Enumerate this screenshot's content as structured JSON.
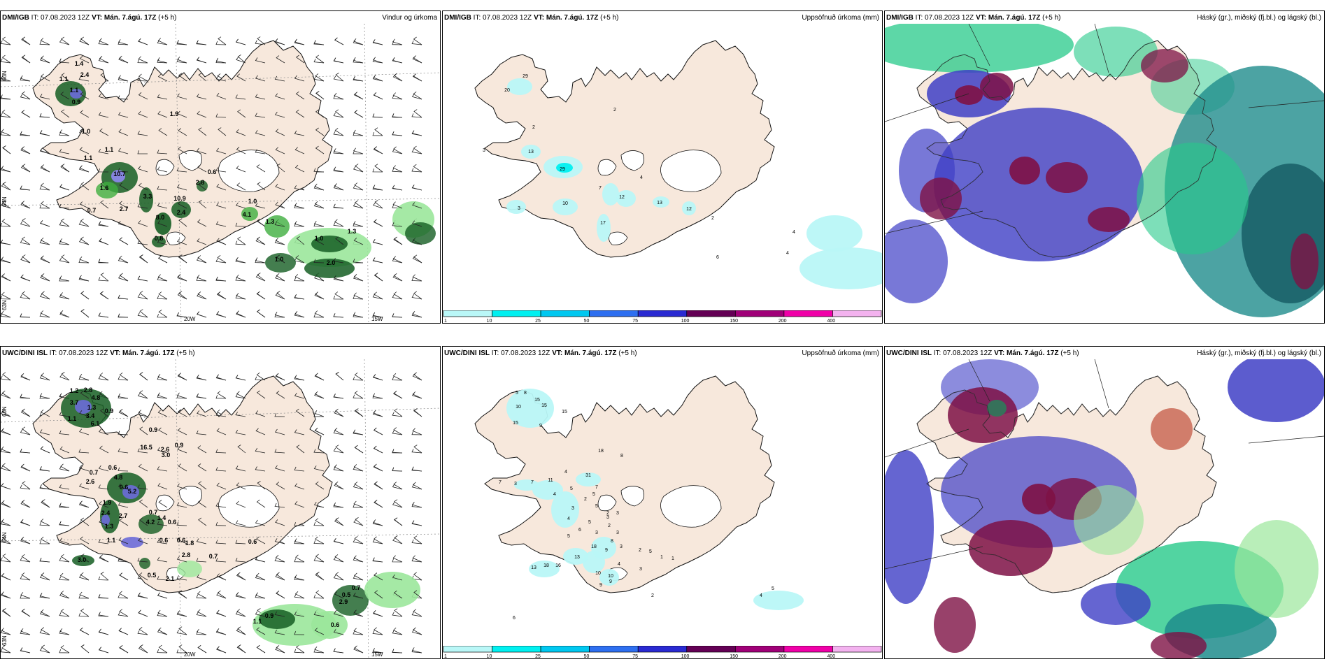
{
  "panels": [
    {
      "source": "DMI/IGB",
      "it": "IT: 07.08.2023 12Z",
      "vt_label": "VT:",
      "vt_value": "Mán. 7.ágú. 17Z",
      "lead": "(+5 h)",
      "product": "Vindur og úrkoma",
      "labels": [
        [
          "1.4",
          112,
          60
        ],
        [
          "1.1",
          90,
          82
        ],
        [
          "2.4",
          120,
          76
        ],
        [
          "1.1",
          105,
          98
        ],
        [
          "0.9",
          108,
          115
        ],
        [
          "1.9",
          248,
          132
        ],
        [
          "1.0",
          122,
          157
        ],
        [
          "1.1",
          155,
          183
        ],
        [
          "1.1",
          125,
          195
        ],
        [
          "10.7",
          170,
          218
        ],
        [
          "1.6",
          148,
          238
        ],
        [
          "3.3",
          210,
          250
        ],
        [
          "2.7",
          176,
          268
        ],
        [
          "0.7",
          130,
          270
        ],
        [
          "10.9",
          256,
          253
        ],
        [
          "2.4",
          258,
          273
        ],
        [
          "8.0",
          228,
          280
        ],
        [
          "0.8",
          226,
          310
        ],
        [
          "2.8",
          285,
          230
        ],
        [
          "0.6",
          302,
          215
        ],
        [
          "1.0",
          360,
          257
        ],
        [
          "4.1",
          352,
          276
        ],
        [
          "1.3",
          385,
          286
        ],
        [
          "1.0",
          455,
          310
        ],
        [
          "1.3",
          502,
          300
        ],
        [
          "1.0",
          398,
          340
        ],
        [
          "2.0",
          472,
          345
        ]
      ]
    },
    {
      "source": "DMI/IGB",
      "it": "IT: 07.08.2023 12Z",
      "vt_label": "VT:",
      "vt_value": "Mán. 7.ágú. 17Z",
      "lead": "(+5 h)",
      "product": "Uppsöfnuð úrkoma (mm)",
      "labels": [
        [
          "29",
          118,
          77
        ],
        [
          "20",
          92,
          97
        ],
        [
          "2",
          246,
          125
        ],
        [
          "2",
          130,
          150
        ],
        [
          "3",
          59,
          183
        ],
        [
          "13",
          126,
          185
        ],
        [
          "29",
          171,
          210
        ],
        [
          "4",
          284,
          222
        ],
        [
          "7",
          225,
          237
        ],
        [
          "12",
          256,
          250
        ],
        [
          "10",
          175,
          259
        ],
        [
          "13",
          310,
          258
        ],
        [
          "3",
          109,
          266
        ],
        [
          "12",
          352,
          267
        ],
        [
          "2",
          386,
          280
        ],
        [
          "17",
          229,
          287
        ],
        [
          "4",
          502,
          300
        ],
        [
          "4",
          493,
          330
        ],
        [
          "6",
          393,
          336
        ]
      ]
    },
    {
      "source": "DMI/IGB",
      "it": "IT: 07.08.2023 12Z",
      "vt_label": "VT:",
      "vt_value": "Mán. 7.ágú. 17Z",
      "lead": "(+5 h)",
      "product": "Háský (gr.), miðský (fj.bl.) og lágský (bl.)",
      "labels": []
    },
    {
      "source": "UWC/DINI ISL",
      "it": "IT: 07.08.2023 12Z",
      "vt_label": "VT:",
      "vt_value": "Mán. 7.ágú. 17Z",
      "lead": "(+5 h)",
      "product": "",
      "labels": [
        [
          "1.2",
          105,
          48
        ],
        [
          "2.8",
          125,
          47
        ],
        [
          "4.8",
          136,
          58
        ],
        [
          "3.7",
          105,
          65
        ],
        [
          "1.3",
          130,
          72
        ],
        [
          "0.9",
          155,
          77
        ],
        [
          "3.4",
          128,
          84
        ],
        [
          "1.1",
          102,
          88
        ],
        [
          "6.1",
          135,
          95
        ],
        [
          "0.9",
          218,
          104
        ],
        [
          "16.5",
          208,
          129
        ],
        [
          "2.6",
          235,
          132
        ],
        [
          "3.0",
          236,
          140
        ],
        [
          "0.9",
          255,
          126
        ],
        [
          "0.7",
          133,
          165
        ],
        [
          "2.6",
          128,
          178
        ],
        [
          "0.6",
          160,
          158
        ],
        [
          "4.8",
          168,
          172
        ],
        [
          "0.6",
          176,
          186
        ],
        [
          "5.2",
          188,
          192
        ],
        [
          "1.9",
          152,
          208
        ],
        [
          "2.7",
          175,
          227
        ],
        [
          "2.4",
          150,
          223
        ],
        [
          "0.7",
          218,
          222
        ],
        [
          "1.4",
          230,
          230
        ],
        [
          "0.6",
          245,
          236
        ],
        [
          "4.2",
          214,
          236
        ],
        [
          "0.6",
          233,
          262
        ],
        [
          "0.6",
          258,
          262
        ],
        [
          "1.8",
          270,
          266
        ],
        [
          "1.3",
          155,
          242
        ],
        [
          "1.1",
          158,
          262
        ],
        [
          "2.8",
          265,
          283
        ],
        [
          "0.7",
          304,
          285
        ],
        [
          "0.6",
          360,
          264
        ],
        [
          "3.0",
          116,
          290
        ],
        [
          "0.5",
          216,
          312
        ],
        [
          "2.1",
          242,
          317
        ],
        [
          "0.7",
          508,
          330
        ],
        [
          "0.5",
          494,
          340
        ],
        [
          "2.9",
          490,
          350
        ],
        [
          "0.9",
          384,
          370
        ],
        [
          "1.1",
          367,
          378
        ],
        [
          "0.6",
          478,
          383
        ]
      ]
    },
    {
      "source": "UWC/DINI ISL",
      "it": "IT: 07.08.2023 12Z",
      "vt_label": "VT:",
      "vt_value": "Mán. 7.ágú. 17Z",
      "lead": "(+5 h)",
      "product": "Uppsöfnuð úrkoma (mm)",
      "labels": [
        [
          "5",
          106,
          50
        ],
        [
          "8",
          118,
          50
        ],
        [
          "15",
          135,
          60
        ],
        [
          "10",
          108,
          70
        ],
        [
          "15",
          145,
          68
        ],
        [
          "15",
          174,
          77
        ],
        [
          "15",
          104,
          93
        ],
        [
          "9",
          140,
          97
        ],
        [
          "18",
          226,
          133
        ],
        [
          "8",
          256,
          140
        ],
        [
          "4",
          176,
          163
        ],
        [
          "31",
          208,
          168
        ],
        [
          "7",
          82,
          178
        ],
        [
          "3",
          104,
          180
        ],
        [
          "7",
          128,
          178
        ],
        [
          "11",
          154,
          175
        ],
        [
          "5",
          184,
          187
        ],
        [
          "7",
          220,
          185
        ],
        [
          "4",
          160,
          195
        ],
        [
          "5",
          216,
          195
        ],
        [
          "2",
          204,
          202
        ],
        [
          "3",
          186,
          215
        ],
        [
          "4",
          180,
          230
        ],
        [
          "5",
          220,
          212
        ],
        [
          "2",
          236,
          222
        ],
        [
          "3",
          236,
          228
        ],
        [
          "3",
          250,
          222
        ],
        [
          "5",
          210,
          235
        ],
        [
          "5",
          180,
          255
        ],
        [
          "6",
          196,
          246
        ],
        [
          "2",
          238,
          240
        ],
        [
          "3",
          250,
          250
        ],
        [
          "3",
          220,
          250
        ],
        [
          "18",
          216,
          270
        ],
        [
          "8",
          242,
          262
        ],
        [
          "9",
          234,
          275
        ],
        [
          "3",
          255,
          270
        ],
        [
          "2",
          282,
          275
        ],
        [
          "5",
          297,
          277
        ],
        [
          "1",
          313,
          285
        ],
        [
          "1",
          329,
          287
        ],
        [
          "13",
          192,
          285
        ],
        [
          "13",
          130,
          300
        ],
        [
          "18",
          148,
          297
        ],
        [
          "16",
          165,
          297
        ],
        [
          "4",
          252,
          295
        ],
        [
          "10",
          222,
          308
        ],
        [
          "10",
          240,
          312
        ],
        [
          "3",
          283,
          302
        ],
        [
          "9",
          240,
          320
        ],
        [
          "9",
          226,
          325
        ],
        [
          "2",
          300,
          340
        ],
        [
          "5",
          472,
          330
        ],
        [
          "4",
          455,
          340
        ],
        [
          "6",
          102,
          372
        ]
      ]
    },
    {
      "source": "UWC/DINI ISL",
      "it": "IT: 07.08.2023 12Z",
      "vt_label": "VT:",
      "vt_value": "Mán. 7.ágú. 17Z",
      "lead": "(+5 h)",
      "product": "Háský (gr.), miðský (fj.bl.) og lágský (bl.)",
      "labels": []
    }
  ],
  "axis_labels": {
    "lat_66": "66N",
    "lat_64": "64N",
    "lat_63": "63N",
    "lon_20": "20W",
    "lon_15": "15W"
  },
  "colorbar": {
    "ticks": [
      "1",
      "10",
      "25",
      "50",
      "75",
      "100",
      "150",
      "200",
      "400"
    ],
    "colors": [
      "#b9f7f7",
      "#00f0f0",
      "#00c8f0",
      "#2e6ff0",
      "#2a2ad2",
      "#640055",
      "#a00078",
      "#f000a8",
      "#f3b2ef"
    ]
  },
  "colors": {
    "land": "#f7e8dc",
    "precip_light": "#9be79b",
    "precip_mid": "#3fae3f",
    "precip_dark": "#155e23",
    "high_cloud": "#27c98a",
    "mid_cloud": "#3f3fc6",
    "low_cloud": "#7e1145"
  }
}
